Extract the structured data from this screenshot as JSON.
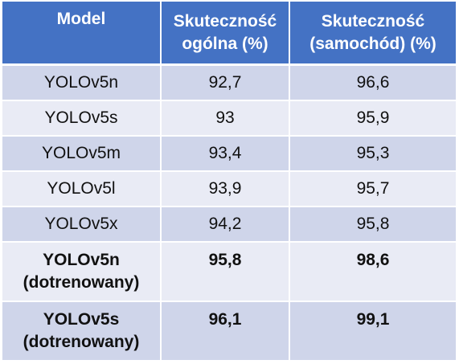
{
  "table": {
    "headers": [
      "Model",
      "Skuteczność ogólna (%)",
      "Skuteczność (samochód) (%)"
    ],
    "header_lines": [
      [
        "Model"
      ],
      [
        "Skuteczność",
        "ogólna (%)"
      ],
      [
        "Skuteczność",
        "(samochód) (%)"
      ]
    ],
    "rows": [
      {
        "model": [
          "YOLOv5n"
        ],
        "overall": "92,7",
        "car": "96,6",
        "bold": false
      },
      {
        "model": [
          "YOLOv5s"
        ],
        "overall": "93",
        "car": "95,9",
        "bold": false
      },
      {
        "model": [
          "YOLOv5m"
        ],
        "overall": "93,4",
        "car": "95,3",
        "bold": false
      },
      {
        "model": [
          "YOLOv5l"
        ],
        "overall": "93,9",
        "car": "95,7",
        "bold": false
      },
      {
        "model": [
          "YOLOv5x"
        ],
        "overall": "94,2",
        "car": "95,8",
        "bold": false
      },
      {
        "model": [
          "YOLOv5n",
          "(dotrenowany)"
        ],
        "overall": "95,8",
        "car": "98,6",
        "bold": true
      },
      {
        "model": [
          "YOLOv5s",
          "(dotrenowany)"
        ],
        "overall": "96,1",
        "car": "99,1",
        "bold": true
      }
    ]
  },
  "colors": {
    "header_bg": "#4472c4",
    "header_text": "#ffffff",
    "row_odd_bg": "#cfd5ea",
    "row_even_bg": "#e9ebf5",
    "body_text": "#111111"
  }
}
